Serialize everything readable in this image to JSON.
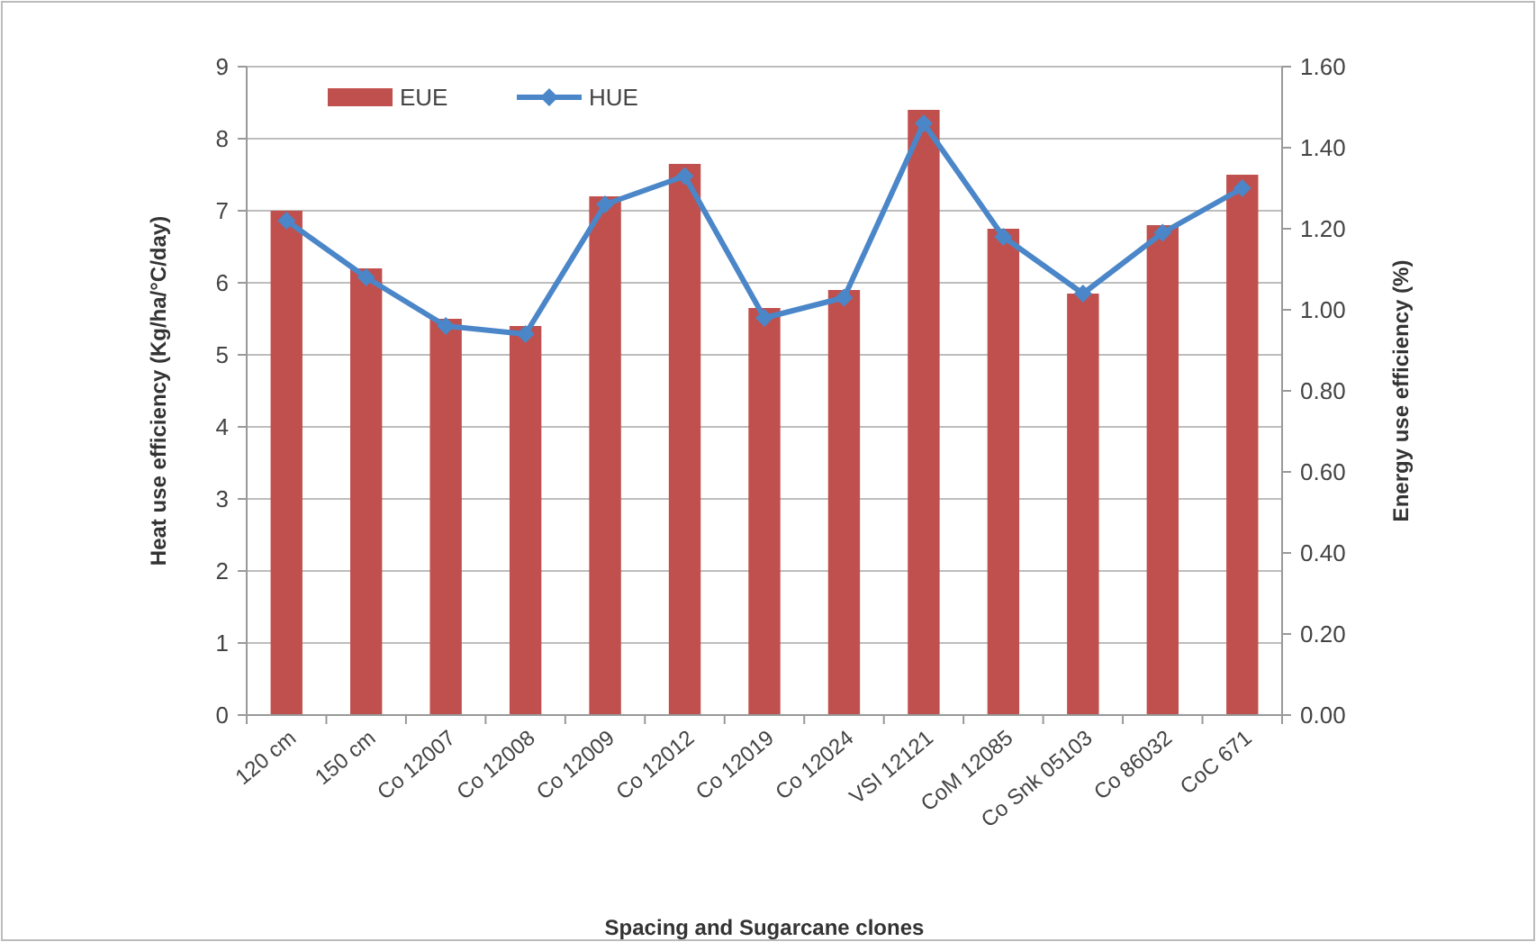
{
  "chart_data": {
    "type": "bar",
    "xlabel": "Spacing and Sugarcane clones",
    "ylabel": "Heat use efficiency (Kg/ha/°C/day)",
    "y2label": "Energy use efficiency (%)",
    "categories": [
      "120 cm",
      "150 cm",
      "Co 12007",
      "Co 12008",
      "Co 12009",
      "Co 12012",
      "Co 12019",
      "Co 12024",
      "VSI 12121",
      "CoM 12085",
      "Co Snk 05103",
      "Co 86032",
      "CoC 671"
    ],
    "series": [
      {
        "name": "EUE",
        "color": "#c0504d",
        "values": [
          7.0,
          6.2,
          5.5,
          5.4,
          7.2,
          7.65,
          5.65,
          5.9,
          8.4,
          6.75,
          5.85,
          6.8,
          7.5
        ]
      },
      {
        "name": "HUE",
        "type": "line",
        "axis": "y2",
        "color": "#4a86c8",
        "marker": "diamond",
        "values": [
          1.22,
          1.08,
          0.96,
          0.94,
          1.26,
          1.33,
          0.98,
          1.03,
          1.46,
          1.18,
          1.04,
          1.19,
          1.3
        ]
      }
    ],
    "ylim": [
      0,
      9
    ],
    "yticks": [
      0,
      1,
      2,
      3,
      4,
      5,
      6,
      7,
      8,
      9
    ],
    "y2lim": [
      0,
      1.6
    ],
    "y2ticks": [
      {
        "value": 0,
        "label": "0.00"
      },
      {
        "value": 0.2,
        "label": "0.20"
      },
      {
        "value": 0.4,
        "label": "0.40"
      },
      {
        "value": 0.6,
        "label": "0.60"
      },
      {
        "value": 0.8,
        "label": "0.80"
      },
      {
        "value": 1.0,
        "label": "1.00"
      },
      {
        "value": 1.2,
        "label": "1.20"
      },
      {
        "value": 1.4,
        "label": "1.40"
      },
      {
        "value": 1.6,
        "label": "1.60"
      }
    ],
    "grid": "y",
    "legend": "top left"
  }
}
